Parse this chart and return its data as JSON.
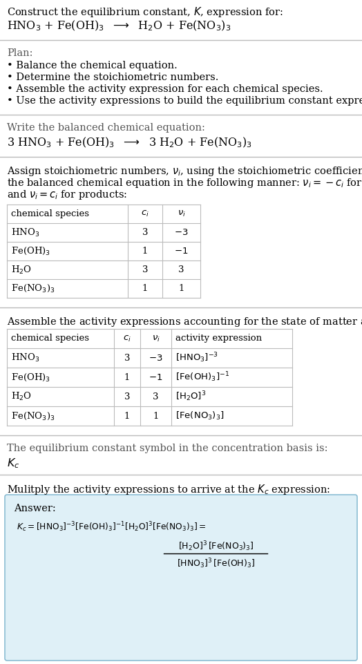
{
  "bg_color": "#ffffff",
  "title_line1": "Construct the equilibrium constant, $K$, expression for:",
  "reaction_unbalanced": "HNO$_3$ + Fe(OH)$_3$  $\\longrightarrow$  H$_2$O + Fe(NO$_3$)$_3$",
  "plan_header": "Plan:",
  "plan_bullets": [
    "• Balance the chemical equation.",
    "• Determine the stoichiometric numbers.",
    "• Assemble the activity expression for each chemical species.",
    "• Use the activity expressions to build the equilibrium constant expression."
  ],
  "balanced_header": "Write the balanced chemical equation:",
  "reaction_balanced": "3 HNO$_3$ + Fe(OH)$_3$  $\\longrightarrow$  3 H$_2$O + Fe(NO$_3$)$_3$",
  "stoich_intro_lines": [
    "Assign stoichiometric numbers, $\\nu_i$, using the stoichiometric coefficients, $c_i$, from",
    "the balanced chemical equation in the following manner: $\\nu_i = -c_i$ for reactants",
    "and $\\nu_i = c_i$ for products:"
  ],
  "table1_headers": [
    "chemical species",
    "$c_i$",
    "$\\nu_i$"
  ],
  "table1_rows": [
    [
      "HNO$_3$",
      "3",
      "$-3$"
    ],
    [
      "Fe(OH)$_3$",
      "1",
      "$-1$"
    ],
    [
      "H$_2$O",
      "3",
      "3"
    ],
    [
      "Fe(NO$_3$)$_3$",
      "1",
      "1"
    ]
  ],
  "activity_intro": "Assemble the activity expressions accounting for the state of matter and $\\nu_i$:",
  "table2_headers": [
    "chemical species",
    "$c_i$",
    "$\\nu_i$",
    "activity expression"
  ],
  "table2_rows": [
    [
      "HNO$_3$",
      "3",
      "$-3$",
      "$[\\mathrm{HNO_3}]^{-3}$"
    ],
    [
      "Fe(OH)$_3$",
      "1",
      "$-1$",
      "$[\\mathrm{Fe(OH)_3}]^{-1}$"
    ],
    [
      "H$_2$O",
      "3",
      "3",
      "$[\\mathrm{H_2O}]^{3}$"
    ],
    [
      "Fe(NO$_3$)$_3$",
      "1",
      "1",
      "$[\\mathrm{Fe(NO_3)_3}]$"
    ]
  ],
  "kc_intro": "The equilibrium constant symbol in the concentration basis is:",
  "kc_symbol": "$K_c$",
  "multiply_intro": "Mulitply the activity expressions to arrive at the $K_c$ expression:",
  "answer_label": "Answer:",
  "answer_box_color": "#dff0f7",
  "answer_box_border": "#8bbdd4",
  "kc_eq": "$K_c = [\\mathrm{HNO_3}]^{-3} [\\mathrm{Fe(OH)_3}]^{-1} [\\mathrm{H_2O}]^{3} [\\mathrm{Fe(NO_3)_3}] = $",
  "num_text": "$[\\mathrm{H_2O}]^3 \\, [\\mathrm{Fe(NO_3)_3}]$",
  "den_text": "$[\\mathrm{HNO_3}]^3 \\, [\\mathrm{Fe(OH)_3}]$"
}
